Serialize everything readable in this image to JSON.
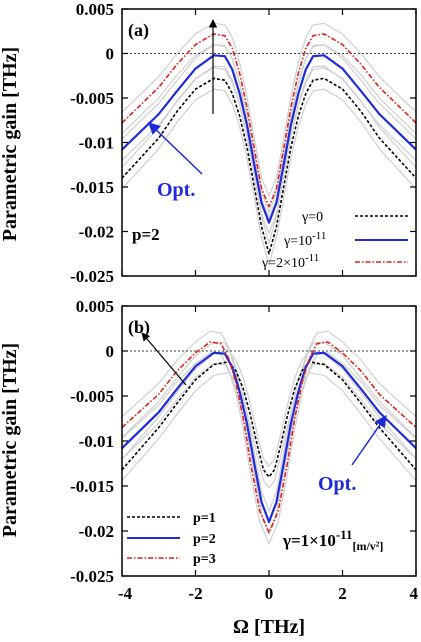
{
  "chart_data": [
    {
      "panel": "(a)",
      "type": "line",
      "title": "",
      "xlabel": "Ω [THz]",
      "ylabel": "Parametric gain [THz]",
      "xlim": [
        -4,
        4
      ],
      "ylim": [
        -0.025,
        0.005
      ],
      "xticks": [
        "-4",
        "-2",
        "0",
        "2",
        "4"
      ],
      "yticks": [
        "0.005",
        "0",
        "-0.005",
        "-0.01",
        "-0.015",
        "-0.02",
        "-0.025"
      ],
      "annotations": [
        "p=2",
        "Opt."
      ],
      "legend_position": "bottom-right",
      "series": [
        {
          "name": "γ=0",
          "color": "#000000",
          "dash": "3,2",
          "x": [
            -4,
            -3,
            -2.5,
            -2,
            -1.5,
            -1.2,
            -1,
            -0.8,
            -0.6,
            -0.4,
            -0.2,
            0,
            0.2,
            0.4,
            0.6,
            0.8,
            1,
            1.2,
            1.5,
            2,
            2.5,
            3,
            4
          ],
          "y": [
            -0.014,
            -0.0095,
            -0.0065,
            -0.004,
            -0.0028,
            -0.003,
            -0.0045,
            -0.007,
            -0.0105,
            -0.015,
            -0.0195,
            -0.0225,
            -0.0195,
            -0.015,
            -0.0105,
            -0.007,
            -0.0045,
            -0.003,
            -0.0028,
            -0.004,
            -0.0065,
            -0.0095,
            -0.014
          ]
        },
        {
          "name": "γ=10",
          "name_sup": "-11",
          "color": "#1f2ad8",
          "dash": "",
          "x": [
            -4,
            -3,
            -2.5,
            -2,
            -1.5,
            -1.2,
            -1,
            -0.8,
            -0.6,
            -0.4,
            -0.2,
            0,
            0.2,
            0.4,
            0.6,
            0.8,
            1,
            1.2,
            1.5,
            2,
            2.5,
            3,
            4
          ],
          "y": [
            -0.0108,
            -0.0068,
            -0.0042,
            -0.0017,
            -0.0002,
            -0.0003,
            -0.0018,
            -0.0045,
            -0.008,
            -0.0125,
            -0.0168,
            -0.019,
            -0.0168,
            -0.0125,
            -0.008,
            -0.0045,
            -0.0018,
            -0.0003,
            -0.0002,
            -0.0017,
            -0.0042,
            -0.0068,
            -0.0108
          ]
        },
        {
          "name": "γ=2×10",
          "name_sup": "-11",
          "color": "#e0201a",
          "dash": "5,2,1.5,2",
          "x": [
            -4,
            -3,
            -2.5,
            -2,
            -1.5,
            -1.2,
            -1,
            -0.8,
            -0.6,
            -0.4,
            -0.2,
            0,
            0.2,
            0.4,
            0.6,
            0.8,
            1,
            1.2,
            1.5,
            2,
            2.5,
            3,
            4
          ],
          "y": [
            -0.0078,
            -0.0038,
            -0.0012,
            0.001,
            0.0022,
            0.002,
            0.0006,
            -0.0022,
            -0.006,
            -0.0107,
            -0.0152,
            -0.0172,
            -0.0152,
            -0.0107,
            -0.006,
            -0.0022,
            0.0006,
            0.002,
            0.0022,
            0.001,
            -0.0012,
            -0.0038,
            -0.0078
          ]
        }
      ]
    },
    {
      "panel": "(b)",
      "type": "line",
      "title": "",
      "xlabel": "Ω [THz]",
      "ylabel": "Parametric gain [THz]",
      "xlim": [
        -4,
        4
      ],
      "ylim": [
        -0.025,
        0.005
      ],
      "xticks": [
        "-4",
        "-2",
        "0",
        "2",
        "4"
      ],
      "yticks": [
        "0.005",
        "0",
        "-0.005",
        "-0.01",
        "-0.015",
        "-0.02",
        "-0.025"
      ],
      "annotations": [
        "Opt.",
        "γ=1×10",
        "-11",
        "[m/v²]"
      ],
      "legend_position": "bottom-left",
      "series": [
        {
          "name": "p=1",
          "color": "#000000",
          "dash": "3,2",
          "x": [
            -4,
            -3,
            -2.5,
            -2,
            -1.5,
            -1.1,
            -0.9,
            -0.7,
            -0.5,
            -0.3,
            -0.15,
            0,
            0.15,
            0.3,
            0.5,
            0.7,
            0.9,
            1.1,
            1.5,
            2,
            2.5,
            3,
            4
          ],
          "y": [
            -0.0132,
            -0.0085,
            -0.0058,
            -0.0032,
            -0.0015,
            -0.0012,
            -0.0022,
            -0.0042,
            -0.0072,
            -0.0108,
            -0.0132,
            -0.014,
            -0.0132,
            -0.0108,
            -0.0072,
            -0.0042,
            -0.0022,
            -0.0012,
            -0.0015,
            -0.0032,
            -0.0058,
            -0.0085,
            -0.0132
          ]
        },
        {
          "name": "p=2",
          "color": "#1f2ad8",
          "dash": "",
          "x": [
            -4,
            -3,
            -2.5,
            -2,
            -1.5,
            -1.2,
            -1,
            -0.8,
            -0.6,
            -0.4,
            -0.2,
            0,
            0.2,
            0.4,
            0.6,
            0.8,
            1,
            1.2,
            1.5,
            2,
            2.5,
            3,
            4
          ],
          "y": [
            -0.0108,
            -0.0068,
            -0.0042,
            -0.0017,
            -0.0002,
            -0.0003,
            -0.0018,
            -0.0045,
            -0.008,
            -0.0125,
            -0.0168,
            -0.019,
            -0.0168,
            -0.0125,
            -0.008,
            -0.0045,
            -0.0018,
            -0.0003,
            -0.0002,
            -0.0017,
            -0.0042,
            -0.0068,
            -0.0108
          ]
        },
        {
          "name": "p=3",
          "color": "#e0201a",
          "dash": "5,2,1.5,2",
          "x": [
            -4,
            -3,
            -2.5,
            -2,
            -1.6,
            -1.3,
            -1.1,
            -0.9,
            -0.7,
            -0.5,
            -0.25,
            0,
            0.25,
            0.5,
            0.7,
            0.9,
            1.1,
            1.3,
            1.6,
            2,
            2.5,
            3,
            4
          ],
          "y": [
            -0.0085,
            -0.0048,
            -0.0022,
            -0.0002,
            0.001,
            0.0008,
            -0.0008,
            -0.0035,
            -0.0075,
            -0.0125,
            -0.0178,
            -0.0202,
            -0.0178,
            -0.0125,
            -0.0075,
            -0.0035,
            -0.0008,
            0.0008,
            0.001,
            -0.0002,
            -0.0022,
            -0.0048,
            -0.0085
          ]
        }
      ]
    }
  ]
}
